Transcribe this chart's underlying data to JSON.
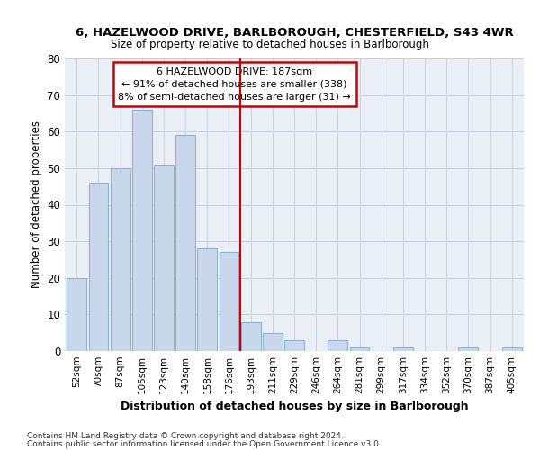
{
  "title": "6, HAZELWOOD DRIVE, BARLBOROUGH, CHESTERFIELD, S43 4WR",
  "subtitle": "Size of property relative to detached houses in Barlborough",
  "xlabel": "Distribution of detached houses by size in Barlborough",
  "ylabel": "Number of detached properties",
  "bar_color": "#c8d8ea",
  "bar_edge_color": "#8ab4d4",
  "grid_color": "#c8d0dc",
  "background_color": "#eaeff6",
  "categories": [
    "52sqm",
    "70sqm",
    "87sqm",
    "105sqm",
    "123sqm",
    "140sqm",
    "158sqm",
    "176sqm",
    "193sqm",
    "211sqm",
    "229sqm",
    "246sqm",
    "264sqm",
    "281sqm",
    "299sqm",
    "317sqm",
    "334sqm",
    "352sqm",
    "370sqm",
    "387sqm",
    "405sqm"
  ],
  "values": [
    20,
    46,
    50,
    66,
    51,
    59,
    28,
    27,
    8,
    5,
    3,
    0,
    3,
    1,
    0,
    1,
    0,
    0,
    1,
    0,
    1
  ],
  "property_line_x": 7.5,
  "annotation_line1": "6 HAZELWOOD DRIVE: 187sqm",
  "annotation_line2": "← 91% of detached houses are smaller (338)",
  "annotation_line3": "8% of semi-detached houses are larger (31) →",
  "annotation_box_color": "white",
  "annotation_box_edge": "#cc0000",
  "property_line_color": "#cc0000",
  "ylim": [
    0,
    80
  ],
  "yticks": [
    0,
    10,
    20,
    30,
    40,
    50,
    60,
    70,
    80
  ],
  "footer1": "Contains HM Land Registry data © Crown copyright and database right 2024.",
  "footer2": "Contains public sector information licensed under the Open Government Licence v3.0."
}
